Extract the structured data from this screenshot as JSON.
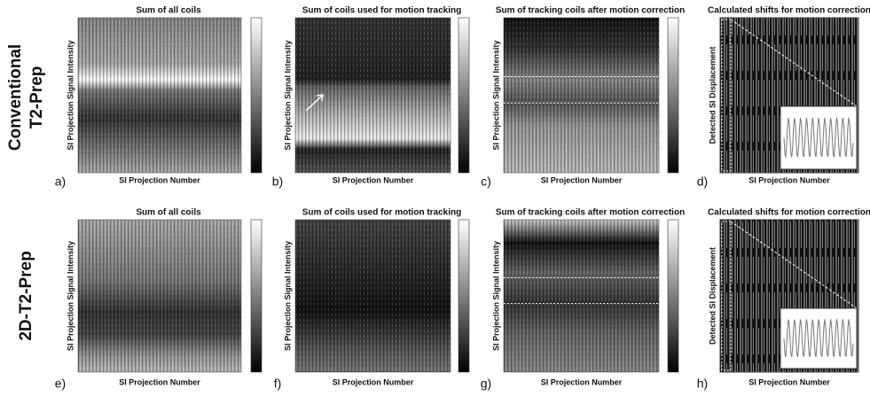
{
  "rows": [
    {
      "label_lines": [
        "Conventional",
        "T2-Prep"
      ],
      "panels": [
        {
          "letter": "a)",
          "title": "Sum of all coils",
          "y_label": "SI Projection Signal Intensity",
          "x_label": "SI Projection Number"
        },
        {
          "letter": "b)",
          "title": "Sum of coils used for motion tracking",
          "y_label": "SI Projection Signal Intensity",
          "x_label": "SI Projection Number"
        },
        {
          "letter": "c)",
          "title": "Sum of tracking coils after motion correction",
          "y_label": "SI Projection Signal Intensity",
          "x_label": "SI Projection Number"
        },
        {
          "letter": "d)",
          "title": "Calculated shifts for motion correction",
          "y_label": "Detected SI Displacement",
          "x_label": "SI Projection Number"
        }
      ]
    },
    {
      "label_lines": [
        "2D-T2-Prep"
      ],
      "panels": [
        {
          "letter": "e)",
          "title": "Sum of all coils",
          "y_label": "SI Projection Signal Intensity",
          "x_label": "SI Projection Number"
        },
        {
          "letter": "f)",
          "title": "Sum of coils used for motion tracking",
          "y_label": "SI Projection Signal Intensity",
          "x_label": "SI Projection Number"
        },
        {
          "letter": "g)",
          "title": "Sum of tracking coils after motion correction",
          "y_label": "SI Projection Signal Intensity",
          "x_label": "SI Projection Number"
        },
        {
          "letter": "h)",
          "title": "Calculated shifts for motion correction",
          "y_label": "Detected SI Displacement",
          "x_label": "SI Projection Number"
        }
      ]
    }
  ]
}
